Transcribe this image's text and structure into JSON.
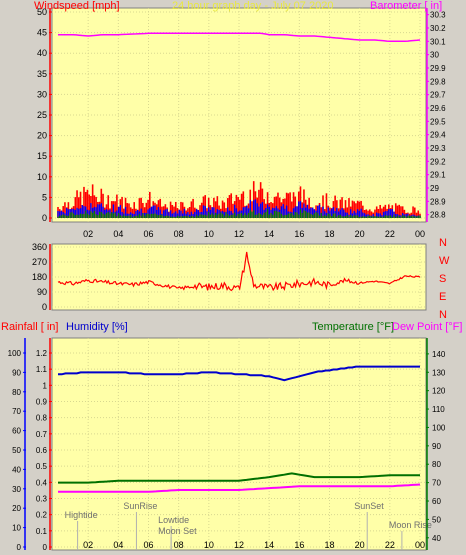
{
  "colors": {
    "background": "#d4d0c8",
    "plot_fill": "#ffffa8",
    "wind_red": "#ff0000",
    "wind_blue": "#0000ff",
    "wind_green": "#008000",
    "barometer": "#ff00ff",
    "humidity": "#0000cc",
    "temperature": "#007000",
    "dewpoint": "#ff00ff",
    "header_yellow": "#e8e840",
    "axis_label": "#000000",
    "rain_axis": "#0000ff",
    "temp_axis": "#008000",
    "direction_red": "#ff0000"
  },
  "chart_data": [
    {
      "id": "wind_baro",
      "type": "line",
      "title": "24 hour graph day - July 07 2020",
      "left_axis_label": "Windspeed [mph]",
      "right_axis_label": "Barometer [ in]",
      "x_tick_labels": [
        "02",
        "04",
        "06",
        "08",
        "10",
        "12",
        "14",
        "16",
        "18",
        "20",
        "22",
        "00"
      ],
      "y_left_ticks": [
        "0",
        "5",
        "10",
        "15",
        "20",
        "25",
        "30",
        "35",
        "40",
        "45",
        "50"
      ],
      "y_left_lim": [
        0,
        50
      ],
      "y_right_ticks": [
        "28.8",
        "28.9",
        "29",
        "29.1",
        "29.2",
        "29.3",
        "29.4",
        "29.5",
        "29.6",
        "29.7",
        "29.8",
        "29.9",
        "30",
        "30.1",
        "30.2",
        "30.3"
      ],
      "y_right_lim": [
        28.775,
        30.32
      ],
      "barometer_hours": [
        0,
        1,
        2,
        3,
        4,
        6,
        8,
        10,
        12,
        13.5,
        14,
        15,
        16,
        17,
        18,
        19,
        20,
        21,
        22,
        23,
        24
      ],
      "barometer_values": [
        30.15,
        30.15,
        30.14,
        30.15,
        30.15,
        30.16,
        30.16,
        30.16,
        30.16,
        30.16,
        30.15,
        30.15,
        30.14,
        30.14,
        30.13,
        30.12,
        30.11,
        30.11,
        30.1,
        30.1,
        30.11
      ],
      "gust_envelope_hours": [
        0,
        1,
        2,
        3,
        4,
        5,
        6,
        7,
        8,
        9,
        10,
        11,
        12,
        13,
        14,
        15,
        16,
        17,
        18,
        19,
        20,
        21,
        22,
        23,
        24
      ],
      "gust_envelope_values": [
        4,
        6,
        9,
        7,
        6,
        5,
        7,
        4,
        4,
        5,
        6,
        5,
        8,
        9,
        9,
        7,
        8,
        6,
        6,
        5,
        5,
        3,
        4,
        3,
        3
      ],
      "wind_mean_values": [
        2,
        3,
        4,
        3,
        3,
        2,
        3,
        2,
        2,
        2,
        3,
        2,
        3,
        4,
        4,
        3,
        4,
        3,
        3,
        2,
        2,
        1,
        2,
        1,
        1
      ],
      "wind_low_values": [
        0.5,
        1,
        1.5,
        1,
        1,
        0.5,
        1,
        0.5,
        0.5,
        0.5,
        1,
        1,
        1,
        1.5,
        1.5,
        1,
        1.5,
        1,
        1,
        0.5,
        0.5,
        0.5,
        0.5,
        0.5,
        0.5
      ]
    },
    {
      "id": "wind_dir",
      "type": "line",
      "y_ticks": [
        "0",
        "90",
        "180",
        "270",
        "360"
      ],
      "y_lim": [
        0,
        360
      ],
      "compass_labels": [
        "N",
        "W",
        "S",
        "E",
        "N"
      ],
      "direction_hours": [
        0,
        1,
        2,
        3,
        4,
        5,
        6,
        7,
        8,
        9,
        10,
        11,
        12,
        12.5,
        13,
        14,
        15,
        16,
        17,
        18,
        19,
        20,
        21,
        22,
        23,
        24
      ],
      "direction_values": [
        150,
        140,
        160,
        150,
        140,
        135,
        150,
        130,
        110,
        125,
        120,
        130,
        110,
        300,
        130,
        115,
        125,
        140,
        150,
        130,
        160,
        145,
        155,
        140,
        185,
        180
      ]
    },
    {
      "id": "humidity_temp",
      "type": "line",
      "left_labels": [
        "Rainfall [ in]",
        "Humidity [%]"
      ],
      "right_labels": [
        "Temperature [°F]",
        "Dew Point [°F]"
      ],
      "x_tick_labels": [
        "02",
        "04",
        "06",
        "08",
        "10",
        "12",
        "14",
        "16",
        "18",
        "20",
        "22",
        "00"
      ],
      "rain_ticks": [
        "0",
        "0.1",
        "0.2",
        "0.3",
        "0.4",
        "0.5",
        "0.6",
        "0.7",
        "0.8",
        "0.9",
        "1",
        "1.1",
        "1.2"
      ],
      "humidity_ticks": [
        "0",
        "10",
        "20",
        "30",
        "40",
        "50",
        "60",
        "70",
        "80",
        "90",
        "100"
      ],
      "temp_ticks": [
        "40",
        "50",
        "60",
        "70",
        "80",
        "90",
        "100",
        "110",
        "120",
        "130",
        "140"
      ],
      "temp_lim": [
        35,
        147
      ],
      "humidity_hours": [
        0,
        2,
        4,
        6,
        8,
        10,
        12,
        14,
        15,
        16,
        17,
        18,
        20,
        22,
        24
      ],
      "humidity_values": [
        89,
        90,
        90,
        89,
        89,
        90,
        89,
        88,
        86,
        88,
        90,
        91,
        93,
        93,
        93
      ],
      "temperature_hours": [
        0,
        2,
        4,
        6,
        8,
        10,
        12,
        14,
        15.5,
        17,
        18,
        20,
        22,
        24
      ],
      "temperature_values": [
        70,
        70,
        71,
        71,
        71,
        71,
        71,
        73,
        75,
        73,
        73,
        73,
        74,
        74
      ],
      "dewpoint_hours": [
        0,
        2,
        4,
        6,
        8,
        10,
        12,
        14,
        16,
        18,
        20,
        22,
        24
      ],
      "dewpoint_values": [
        65,
        65,
        65,
        65,
        66,
        66,
        66,
        67,
        68,
        68,
        68,
        68,
        69
      ],
      "events": [
        {
          "label": "Hightide",
          "hour": 1.3
        },
        {
          "label": "SunRise",
          "hour": 5.2
        },
        {
          "label": "Lowtide",
          "hour": 7.5
        },
        {
          "label": "Moon Set",
          "hour": 7.5
        },
        {
          "label": "SunSet",
          "hour": 20.5
        },
        {
          "label": "Moon Rise",
          "hour": 22.8
        }
      ]
    }
  ]
}
